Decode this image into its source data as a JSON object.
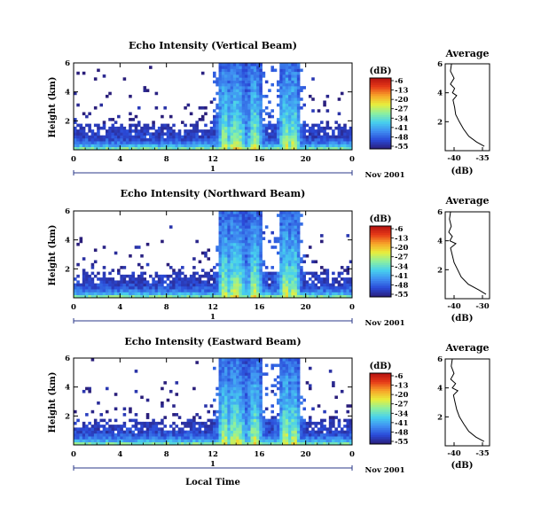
{
  "chart_data": [
    {
      "type": "heatmap",
      "title": "Echo Intensity (Vertical Beam)",
      "ylabel": "Height (km)",
      "x_ticks": [
        "0",
        "4",
        "8",
        "12",
        "16",
        "20",
        "0"
      ],
      "y_ticks": [
        "2",
        "4",
        "6"
      ],
      "colorbar_label": "(dB)",
      "colorbar_ticks": [
        "-6",
        "-13",
        "-20",
        "-27",
        "-34",
        "-41",
        "-48",
        "-55"
      ],
      "day_label": "1",
      "date_label": "Nov 2001",
      "xlim": [
        0,
        24
      ],
      "ylim": [
        0,
        6
      ],
      "zlim": [
        -55,
        -6
      ],
      "profile": {
        "title": "Average",
        "xlabel": "(dB)",
        "x_ticks": [
          "-40",
          "-35"
        ],
        "y_ticks": [
          "2",
          "4",
          "6"
        ],
        "height_km": [
          0.3,
          0.6,
          1.0,
          1.5,
          2.0,
          2.5,
          3.0,
          3.5,
          3.8,
          4.0,
          4.3,
          4.6,
          5.0,
          5.5,
          6.0
        ],
        "intensity_db": [
          -34.5,
          -36.0,
          -37.5,
          -38.5,
          -39.3,
          -40.0,
          -40.2,
          -40.5,
          -39.8,
          -40.6,
          -40.2,
          -41.0,
          -40.3,
          -41.0,
          -40.8
        ]
      }
    },
    {
      "type": "heatmap",
      "title": "Echo Intensity (Northward Beam)",
      "ylabel": "Height (km)",
      "x_ticks": [
        "0",
        "4",
        "8",
        "12",
        "16",
        "20",
        "0"
      ],
      "y_ticks": [
        "2",
        "4",
        "6"
      ],
      "colorbar_label": "(dB)",
      "colorbar_ticks": [
        "-6",
        "-13",
        "-20",
        "-27",
        "-34",
        "-41",
        "-48",
        "-55"
      ],
      "day_label": "1",
      "date_label": "Nov 2001",
      "xlim": [
        0,
        24
      ],
      "ylim": [
        0,
        6
      ],
      "zlim": [
        -55,
        -6
      ],
      "profile": {
        "title": "Average",
        "xlabel": "(dB)",
        "x_ticks": [
          "-40",
          "-30"
        ],
        "y_ticks": [
          "2",
          "4",
          "6"
        ],
        "height_km": [
          0.3,
          0.6,
          1.0,
          1.5,
          2.0,
          2.5,
          3.0,
          3.5,
          3.8,
          4.0,
          4.3,
          4.6,
          5.0,
          5.5,
          6.0
        ],
        "intensity_db": [
          -31.0,
          -33.0,
          -36.0,
          -38.0,
          -39.0,
          -40.0,
          -40.5,
          -41.0,
          -39.5,
          -41.2,
          -40.5,
          -41.5,
          -40.8,
          -41.3,
          -41.0
        ]
      }
    },
    {
      "type": "heatmap",
      "title": "Echo Intensity (Eastward Beam)",
      "ylabel": "Height (km)",
      "x_ticks": [
        "0",
        "4",
        "8",
        "12",
        "16",
        "20",
        "0"
      ],
      "y_ticks": [
        "2",
        "4",
        "6"
      ],
      "colorbar_label": "(dB)",
      "colorbar_ticks": [
        "-6",
        "-13",
        "-20",
        "-27",
        "-34",
        "-41",
        "-48",
        "-55"
      ],
      "day_label": "1",
      "date_label": "Nov 2001",
      "xlim": [
        0,
        24
      ],
      "ylim": [
        0,
        6
      ],
      "zlim": [
        -55,
        -6
      ],
      "profile": {
        "title": "Average",
        "xlabel": "(dB)",
        "x_ticks": [
          "-40",
          "-35"
        ],
        "y_ticks": [
          "2",
          "4",
          "6"
        ],
        "height_km": [
          0.3,
          0.6,
          1.0,
          1.5,
          2.0,
          2.5,
          3.0,
          3.5,
          3.8,
          4.0,
          4.3,
          4.6,
          5.0,
          5.5,
          6.0
        ],
        "intensity_db": [
          -35.0,
          -36.5,
          -37.8,
          -38.7,
          -39.5,
          -40.0,
          -40.3,
          -40.6,
          -39.8,
          -40.8,
          -40.2,
          -41.1,
          -40.5,
          -41.0,
          -40.8
        ]
      }
    }
  ],
  "shared_xlabel": "Local Time",
  "colormap_stops": [
    "#2a1e7a",
    "#2a4ad8",
    "#3f8ff2",
    "#47d0ee",
    "#8cf0a0",
    "#e8ee3c",
    "#f7a529",
    "#e63a18",
    "#b31010"
  ]
}
